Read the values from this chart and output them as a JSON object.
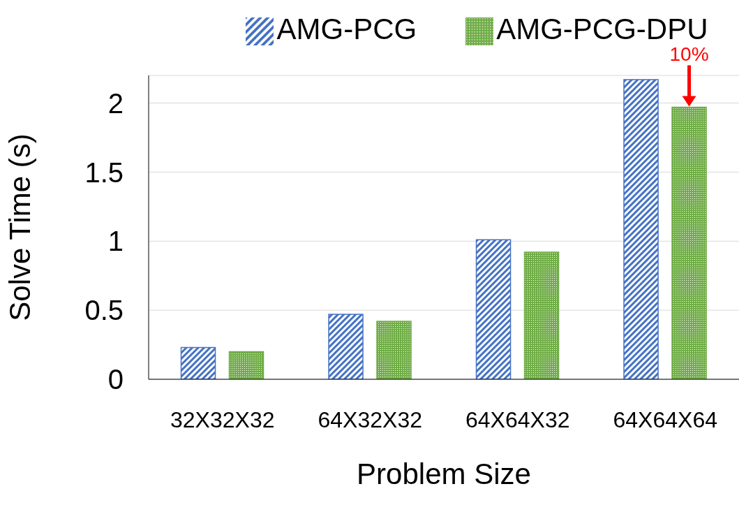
{
  "chart_data": {
    "type": "bar",
    "xlabel": "Problem Size",
    "ylabel": "Solve Time (s)",
    "categories": [
      "32X32X32",
      "64X32X32",
      "64X64X32",
      "64X64X64"
    ],
    "series": [
      {
        "name": "AMG-PCG",
        "color": "#4472c4",
        "values": [
          0.23,
          0.47,
          1.01,
          2.17
        ]
      },
      {
        "name": "AMG-PCG-DPU",
        "color": "#70ad47",
        "values": [
          0.2,
          0.42,
          0.92,
          1.97
        ]
      }
    ],
    "ylim": [
      0,
      2.2
    ],
    "yticks": [
      0,
      0.5,
      1,
      1.5,
      2
    ],
    "grid": "y",
    "legend": "top",
    "annotations": [
      "10%"
    ]
  }
}
